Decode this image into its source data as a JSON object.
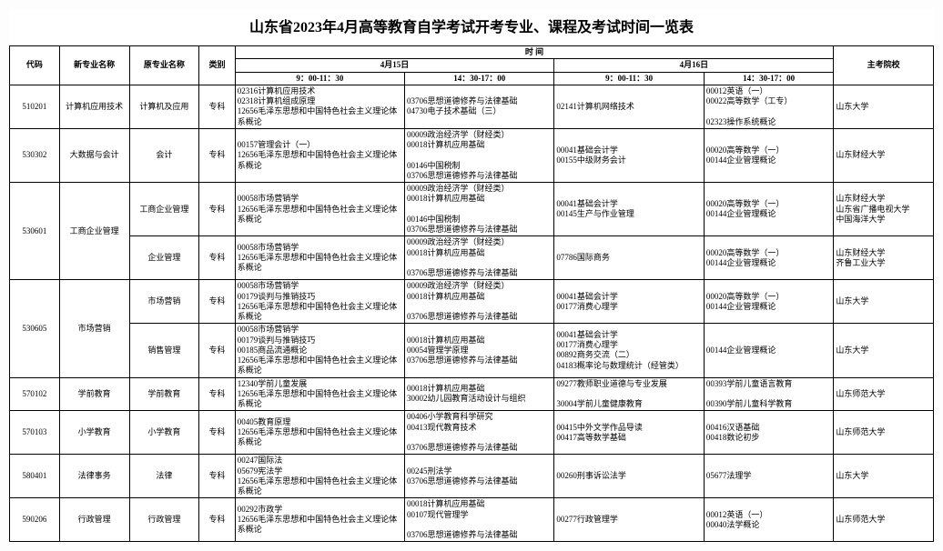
{
  "title": "山东省2023年4月高等教育自学考试开考专业、课程及考试时间一览表",
  "headers": {
    "code": "代码",
    "new_name": "新专业名称",
    "old_name": "原专业名称",
    "level": "类别",
    "time_group": "时                    间",
    "day1": "4月15日",
    "day2": "4月16日",
    "slot1": "9：00-11：30",
    "slot2": "14：30-17：00",
    "slot3": "9：00-11：30",
    "slot4": "14：30-17：00",
    "host": "主考院校"
  },
  "rows": [
    {
      "code": "510201",
      "new_name": "计算机应用技术",
      "old_name": "计算机及应用",
      "level": "专科",
      "s1": [
        "02316计算机应用技术",
        "02318计算机组成原理",
        "12656毛泽东思想和中国特色社会主义理论体系概论"
      ],
      "s2": [
        "03706思想道德修养与法律基础",
        "04730电子技术基础（三）"
      ],
      "s3": [
        "02141计算机网络技术"
      ],
      "s4": [
        "00012英语（一）",
        "00022高等数学（工专）",
        "",
        "02323操作系统概论"
      ],
      "host": [
        "山东大学"
      ]
    },
    {
      "code": "530302",
      "new_name": "大数据与会计",
      "old_name": "会计",
      "level": "专科",
      "s1": [
        "00157管理会计（一）",
        "12656毛泽东思想和中国特色社会主义理论体系概论"
      ],
      "s2": [
        "00009政治经济学（财经类）",
        "00018计算机应用基础",
        "",
        "00146中国税制",
        "03706思想道德修养与法律基础"
      ],
      "s3": [
        "00041基础会计学",
        "00155中级财务会计"
      ],
      "s4": [
        "00020高等数学（一）",
        "00144企业管理概论"
      ],
      "host": [
        "山东财经大学"
      ]
    },
    {
      "code": "530601",
      "new_name": "工商企业管理",
      "rowspan": 2,
      "sub": [
        {
          "old_name": "工商企业管理",
          "level": "专科",
          "s1": [
            "00058市场营销学",
            "12656毛泽东思想和中国特色社会主义理论体系概论"
          ],
          "s2": [
            "00009政治经济学（财经类）",
            "00018计算机应用基础",
            "",
            "00146中国税制",
            "03706思想道德修养与法律基础"
          ],
          "s3": [
            "00041基础会计学",
            "00145生产与作业管理"
          ],
          "s4": [
            "00020高等数学（一）",
            "00144企业管理概论"
          ],
          "host": [
            "山东财经大学",
            "山东省广播电视大学",
            "中国海洋大学"
          ]
        },
        {
          "old_name": "企业管理",
          "level": "专科",
          "s1": [
            "00058市场营销学",
            "12656毛泽东思想和中国特色社会主义理论体系概论"
          ],
          "s2": [
            "00009政治经济学（财经类）",
            "00018计算机应用基础",
            "",
            "03706思想道德修养与法律基础"
          ],
          "s3": [
            "07786国际商务"
          ],
          "s4": [
            "00020高等数学（一）",
            "00144企业管理概论"
          ],
          "host": [
            "山东财经大学",
            "齐鲁工业大学"
          ]
        }
      ]
    },
    {
      "code": "530605",
      "new_name": "市场营销",
      "rowspan": 2,
      "sub": [
        {
          "old_name": "市场营销",
          "level": "专科",
          "s1": [
            "00058市场营销学",
            "00179谈判与推销技巧",
            "12656毛泽东思想和中国特色社会主义理论体系概论"
          ],
          "s2": [
            "00009政治经济学（财经类）",
            "00018计算机应用基础",
            "",
            "03706思想道德修养与法律基础"
          ],
          "s3": [
            "00041基础会计学",
            "00177消费心理学"
          ],
          "s4": [
            "00020高等数学（一）",
            "00144企业管理概论"
          ],
          "host": [
            "山东大学"
          ]
        },
        {
          "old_name": "销售管理",
          "level": "专科",
          "s1": [
            "00058市场营销学",
            "00179谈判与推销技巧",
            "00185商品流通概论",
            "12656毛泽东思想和中国特色社会主义理论体系概论"
          ],
          "s2": [
            "00018计算机应用基础",
            "00054管理学原理",
            "03706思想道德修养与法律基础"
          ],
          "s3": [
            "00041基础会计学",
            "00177消费心理学",
            "00892商务交流（二）",
            "04183概率论与数理统计（经管类）"
          ],
          "s4": [
            "00144企业管理概论"
          ],
          "host": [
            "山东大学"
          ]
        }
      ]
    },
    {
      "code": "570102",
      "new_name": "学前教育",
      "old_name": "学前教育",
      "level": "专科",
      "s1": [
        "12340学前儿童发展",
        "12656毛泽东思想和中国特色社会主义理论体系概论"
      ],
      "s2": [
        "00018计算机应用基础",
        "30002幼儿园教育活动设计与组织"
      ],
      "s3": [
        "09277教师职业道德与专业发展",
        "",
        "30004学前儿童健康教育"
      ],
      "s4": [
        "00393学前儿童语言教育",
        "",
        "00390学前儿童科学教育"
      ],
      "host": [
        "山东师范大学"
      ]
    },
    {
      "code": "570103",
      "new_name": "小学教育",
      "old_name": "小学教育",
      "level": "专科",
      "s1": [
        "00405教育原理",
        "12656毛泽东思想和中国特色社会主义理论体系概论"
      ],
      "s2": [
        "00406小学教育科学研究",
        "00413现代教育技术",
        "",
        "03706思想道德修养与法律基础"
      ],
      "s3": [
        "00415中外文学作品导读",
        "00417高等数学基础"
      ],
      "s4": [
        "00416汉语基础",
        "00418数论初步"
      ],
      "host": [
        "山东师范大学"
      ]
    },
    {
      "code": "580401",
      "new_name": "法律事务",
      "old_name": "法律",
      "level": "专科",
      "s1": [
        "00247国际法",
        "05679宪法学",
        "12656毛泽东思想和中国特色社会主义理论体系概论"
      ],
      "s2": [
        "00245刑法学",
        "03706思想道德修养与法律基础"
      ],
      "s3": [
        "00260刑事诉讼法学"
      ],
      "s4": [
        "05677法理学"
      ],
      "host": [
        "山东大学"
      ]
    },
    {
      "code": "590206",
      "new_name": "行政管理",
      "old_name": "行政管理",
      "level": "专科",
      "s1": [
        "00292市政学",
        "12656毛泽东思想和中国特色社会主义理论体系概论"
      ],
      "s2": [
        "00018计算机应用基础",
        "00107现代管理学",
        "",
        "03706思想道德修养与法律基础"
      ],
      "s3": [
        "00277行政管理学"
      ],
      "s4": [
        "00012英语（一）",
        "00040法学概论"
      ],
      "host": [
        "山东师范大学"
      ]
    }
  ]
}
